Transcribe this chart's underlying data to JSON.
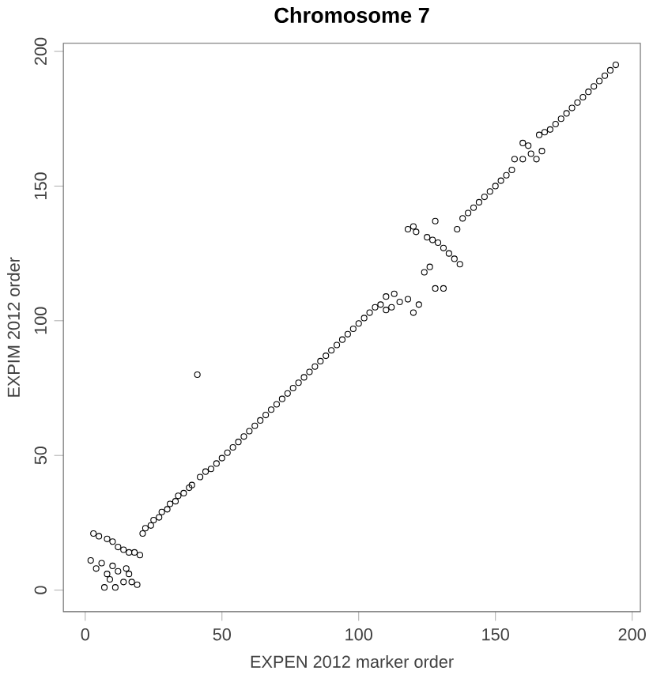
{
  "chart_data": {
    "type": "scatter",
    "title": "Chromosome 7",
    "xlabel": "EXPEN 2012 marker order",
    "ylabel": "EXPIM 2012 order",
    "xlim": [
      -8,
      203
    ],
    "ylim": [
      -8,
      203
    ],
    "xticks": [
      0,
      50,
      100,
      150,
      200
    ],
    "yticks": [
      0,
      50,
      100,
      150,
      200
    ],
    "grid": false,
    "marker": "circle",
    "series": [
      {
        "color": "#000000",
        "x": [
          3,
          5,
          8,
          10,
          12,
          14,
          16,
          18,
          20,
          2,
          4,
          6,
          8,
          9,
          10,
          12,
          14,
          15,
          16,
          17,
          7,
          11,
          19,
          21,
          22,
          24,
          25,
          27,
          28,
          30,
          31,
          33,
          34,
          36,
          38,
          39,
          41,
          42,
          44,
          46,
          48,
          50,
          52,
          54,
          56,
          58,
          60,
          62,
          64,
          66,
          68,
          70,
          72,
          74,
          76,
          78,
          80,
          82,
          84,
          86,
          88,
          90,
          92,
          94,
          96,
          98,
          100,
          102,
          104,
          106,
          108,
          110,
          112,
          113,
          115,
          110,
          118,
          120,
          121,
          125,
          127,
          129,
          131,
          133,
          135,
          137,
          128,
          128,
          120,
          122,
          118,
          131,
          124,
          126,
          136,
          138,
          140,
          142,
          144,
          146,
          148,
          150,
          152,
          154,
          156,
          157,
          160,
          163,
          165,
          167,
          160,
          162,
          166,
          168,
          170,
          172,
          174,
          176,
          178,
          180,
          182,
          184,
          186,
          188,
          190,
          192,
          194
        ],
        "values": [
          21,
          20,
          19,
          18,
          16,
          15,
          14,
          14,
          13,
          11,
          8,
          10,
          6,
          4,
          9,
          7,
          3,
          8,
          6,
          3,
          1,
          1,
          2,
          21,
          23,
          24,
          26,
          27,
          29,
          30,
          32,
          33,
          35,
          36,
          38,
          39,
          80,
          42,
          44,
          45,
          47,
          49,
          51,
          53,
          55,
          57,
          59,
          61,
          63,
          65,
          67,
          69,
          71,
          73,
          75,
          77,
          79,
          81,
          83,
          85,
          87,
          89,
          91,
          93,
          95,
          97,
          99,
          101,
          103,
          105,
          106,
          109,
          105,
          110,
          107,
          104,
          134,
          135,
          133,
          131,
          130,
          129,
          127,
          125,
          123,
          121,
          137,
          112,
          103,
          106,
          108,
          112,
          118,
          120,
          134,
          138,
          140,
          142,
          144,
          146,
          148,
          150,
          152,
          154,
          156,
          160,
          166,
          162,
          160,
          163,
          160,
          165,
          169,
          170,
          171,
          173,
          175,
          177,
          179,
          181,
          183,
          185,
          187,
          189,
          191,
          193,
          195
        ]
      }
    ]
  }
}
